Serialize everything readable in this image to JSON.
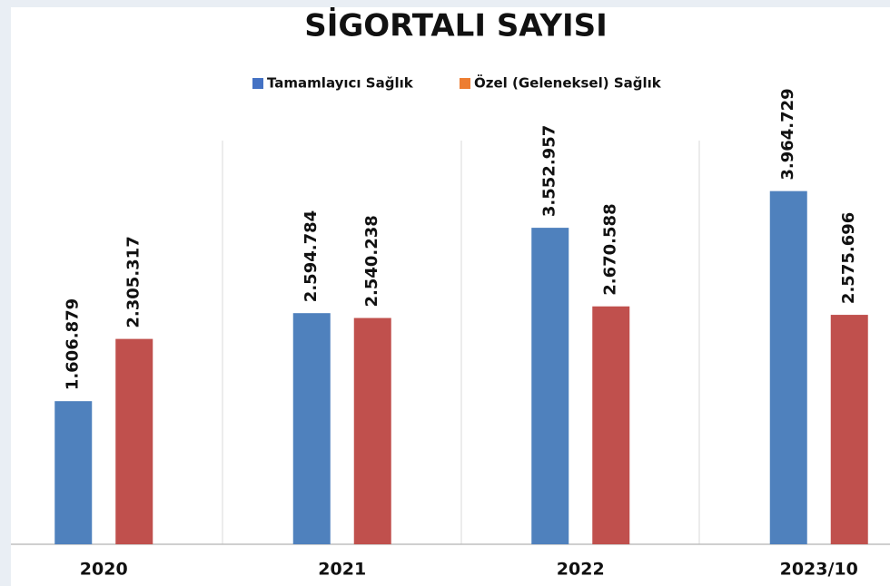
{
  "chart_data": {
    "type": "bar",
    "title": "SİGORTALI SAYISI",
    "categories": [
      "2020",
      "2021",
      "2022",
      "2023/10"
    ],
    "series": [
      {
        "name": "Tamamlayıcı Sağlık",
        "color": "#4f81bd",
        "legend_color": "#4472c4",
        "values": [
          1606879,
          2594784,
          3552957,
          3964729
        ],
        "value_labels": [
          "1.606.879",
          "2.594.784",
          "3.552.957",
          "3.964.729"
        ]
      },
      {
        "name": "Özel (Geleneksel) Sağlık",
        "color": "#c0504d",
        "legend_color": "#ed7d31",
        "values": [
          2305317,
          2540238,
          2670588,
          2575696
        ],
        "value_labels": [
          "2.305.317",
          "2.540.238",
          "2.670.588",
          "2.575.696"
        ]
      }
    ],
    "ylim": [
      0,
      5000000
    ]
  }
}
